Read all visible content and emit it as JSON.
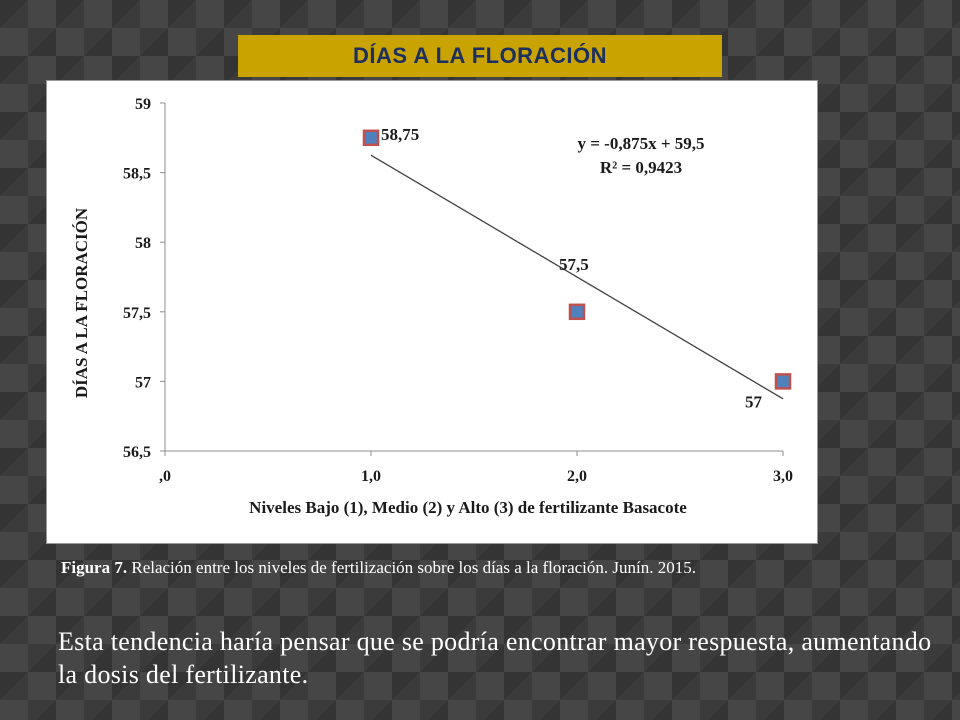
{
  "slide": {
    "title": "DÍAS A LA FLORACIÓN",
    "caption_label": "Figura 7.",
    "caption_text": " Relación entre los niveles de fertilización sobre los días a la floración. Junín. 2015.",
    "body_text": "Esta tendencia haría pensar que se podría encontrar mayor respuesta, aumentando la dosis del fertilizante."
  },
  "colors": {
    "title_bg": "#c9a300",
    "title_text": "#1c2f5e",
    "marker_fill": "#4f81bd",
    "marker_outline": "#c0504d",
    "trendline": "#404040"
  },
  "chart_data": {
    "type": "scatter",
    "xlabel": "Niveles Bajo (1), Medio (2) y Alto (3) de fertilizante  Basacote",
    "ylabel": "DÍAS A LA FLORACIÓN",
    "xlim": [
      0,
      3
    ],
    "ylim": [
      56.5,
      59
    ],
    "x_ticks": [
      ",0",
      "1,0",
      "2,0",
      "3,0"
    ],
    "y_ticks": [
      "56,5",
      "57",
      "57,5",
      "58",
      "58,5",
      "59"
    ],
    "grid": false,
    "series": [
      {
        "points": [
          {
            "x": 1,
            "y": 58.75,
            "label": "58,75"
          },
          {
            "x": 2,
            "y": 57.5,
            "label": "57,5"
          },
          {
            "x": 3,
            "y": 57,
            "label": "57"
          }
        ]
      }
    ],
    "trendline": {
      "type": "linear",
      "slope": -0.875,
      "intercept": 59.5,
      "x_range": [
        1,
        3
      ],
      "equation": "y = -0,875x + 59,5",
      "r2": "R² = 0,9423"
    }
  }
}
